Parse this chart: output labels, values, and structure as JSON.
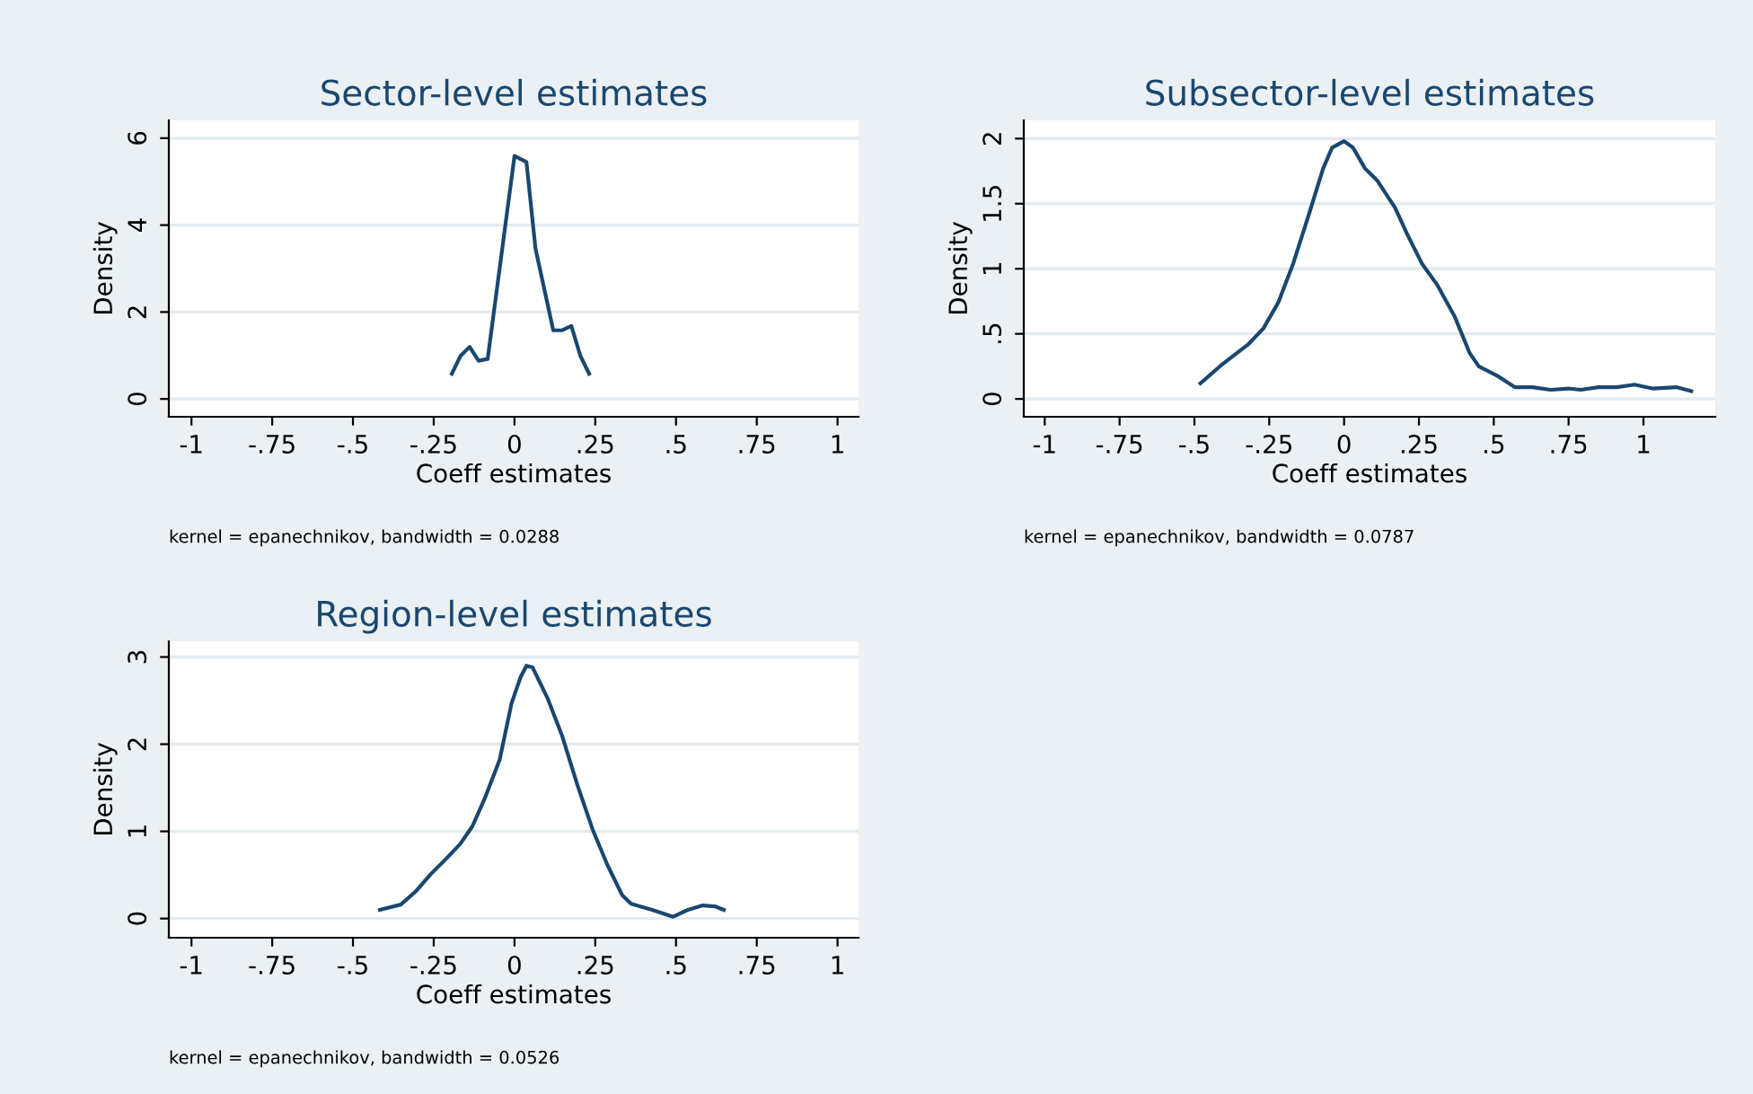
{
  "chart_data": [
    {
      "type": "line",
      "title": "Sector-level estimates",
      "xlabel": "Coeff estimates",
      "ylabel": "Density",
      "annotations": [
        "kernel = epanechnikov, bandwidth = 0.0288"
      ],
      "series": [
        {
          "color": "#1a476f",
          "x": [
            -0.194,
            -0.167,
            -0.139,
            -0.111,
            -0.083,
            0.0,
            0.037,
            0.065,
            0.12,
            0.148,
            0.176,
            0.204,
            0.231
          ],
          "values": [
            0.58,
            0.99,
            1.2,
            0.88,
            0.92,
            5.59,
            5.45,
            3.46,
            1.58,
            1.58,
            1.68,
            0.99,
            0.58
          ]
        }
      ],
      "xlim": [
        -1.07,
        1.065
      ],
      "ylim": [
        -0.41,
        6.41
      ],
      "xticks": [
        {
          "value": -1,
          "label": "-1"
        },
        {
          "value": -0.75,
          "label": "-.75"
        },
        {
          "value": -0.5,
          "label": "-.5"
        },
        {
          "value": -0.25,
          "label": "-.25"
        },
        {
          "value": 0,
          "label": "0"
        },
        {
          "value": 0.25,
          "label": ".25"
        },
        {
          "value": 0.5,
          "label": ".5"
        },
        {
          "value": 0.75,
          "label": ".75"
        },
        {
          "value": 1,
          "label": "1"
        }
      ],
      "yticks": [
        0,
        2,
        4,
        6
      ],
      "grid": "y",
      "legend": false
    },
    {
      "type": "line",
      "title": "Subsector-level estimates",
      "xlabel": "Coeff estimates",
      "ylabel": "Density",
      "annotations": [
        "kernel = epanechnikov, bandwidth = 0.0787"
      ],
      "series": [
        {
          "color": "#1a476f",
          "x": [
            -0.48,
            -0.41,
            -0.32,
            -0.27,
            -0.22,
            -0.17,
            -0.12,
            -0.07,
            -0.04,
            0.0,
            0.03,
            0.07,
            0.11,
            0.17,
            0.21,
            0.26,
            0.31,
            0.37,
            0.42,
            0.45,
            0.51,
            0.57,
            0.63,
            0.69,
            0.75,
            0.79,
            0.85,
            0.91,
            0.97,
            1.03,
            1.11,
            1.16
          ],
          "values": [
            0.12,
            0.26,
            0.42,
            0.54,
            0.74,
            1.04,
            1.4,
            1.77,
            1.93,
            1.98,
            1.93,
            1.77,
            1.68,
            1.47,
            1.27,
            1.04,
            0.88,
            0.63,
            0.35,
            0.25,
            0.18,
            0.09,
            0.09,
            0.07,
            0.08,
            0.07,
            0.09,
            0.09,
            0.11,
            0.08,
            0.09,
            0.06
          ]
        }
      ],
      "xlim": [
        -1.07,
        1.24
      ],
      "ylim": [
        -0.137,
        2.14
      ],
      "xticks": [
        {
          "value": -1,
          "label": "-1"
        },
        {
          "value": -0.75,
          "label": "-.75"
        },
        {
          "value": -0.5,
          "label": "-.5"
        },
        {
          "value": -0.25,
          "label": "-.25"
        },
        {
          "value": 0,
          "label": "0"
        },
        {
          "value": 0.25,
          "label": ".25"
        },
        {
          "value": 0.5,
          "label": ".5"
        },
        {
          "value": 0.75,
          "label": ".75"
        },
        {
          "value": 1,
          "label": "1"
        }
      ],
      "yticks": [
        0,
        {
          "value": 0.5,
          "label": ".5"
        },
        1,
        1.5,
        2
      ],
      "grid": "y",
      "legend": false
    },
    {
      "type": "line",
      "title": "Region-level estimates",
      "xlabel": "Coeff estimates",
      "ylabel": "Density",
      "annotations": [
        "kernel = epanechnikov, bandwidth = 0.0526"
      ],
      "series": [
        {
          "color": "#1a476f",
          "x": [
            -0.417,
            -0.352,
            -0.306,
            -0.259,
            -0.213,
            -0.167,
            -0.13,
            -0.093,
            -0.046,
            -0.009,
            0.019,
            0.037,
            0.056,
            0.102,
            0.148,
            0.194,
            0.241,
            0.287,
            0.333,
            0.361,
            0.426,
            0.491,
            0.537,
            0.583,
            0.62,
            0.648
          ],
          "values": [
            0.1,
            0.16,
            0.31,
            0.51,
            0.68,
            0.86,
            1.06,
            1.37,
            1.82,
            2.47,
            2.77,
            2.9,
            2.88,
            2.53,
            2.09,
            1.54,
            1.03,
            0.62,
            0.27,
            0.17,
            0.1,
            0.02,
            0.1,
            0.15,
            0.14,
            0.1
          ]
        }
      ],
      "xlim": [
        -1.07,
        1.065
      ],
      "ylim": [
        -0.22,
        3.18
      ],
      "xticks": [
        {
          "value": -1,
          "label": "-1"
        },
        {
          "value": -0.75,
          "label": "-.75"
        },
        {
          "value": -0.5,
          "label": "-.5"
        },
        {
          "value": -0.25,
          "label": "-.25"
        },
        {
          "value": 0,
          "label": "0"
        },
        {
          "value": 0.25,
          "label": ".25"
        },
        {
          "value": 0.5,
          "label": ".5"
        },
        {
          "value": 0.75,
          "label": ".75"
        },
        {
          "value": 1,
          "label": "1"
        }
      ],
      "yticks": [
        0,
        1,
        2,
        3
      ],
      "grid": "y",
      "legend": false
    }
  ]
}
